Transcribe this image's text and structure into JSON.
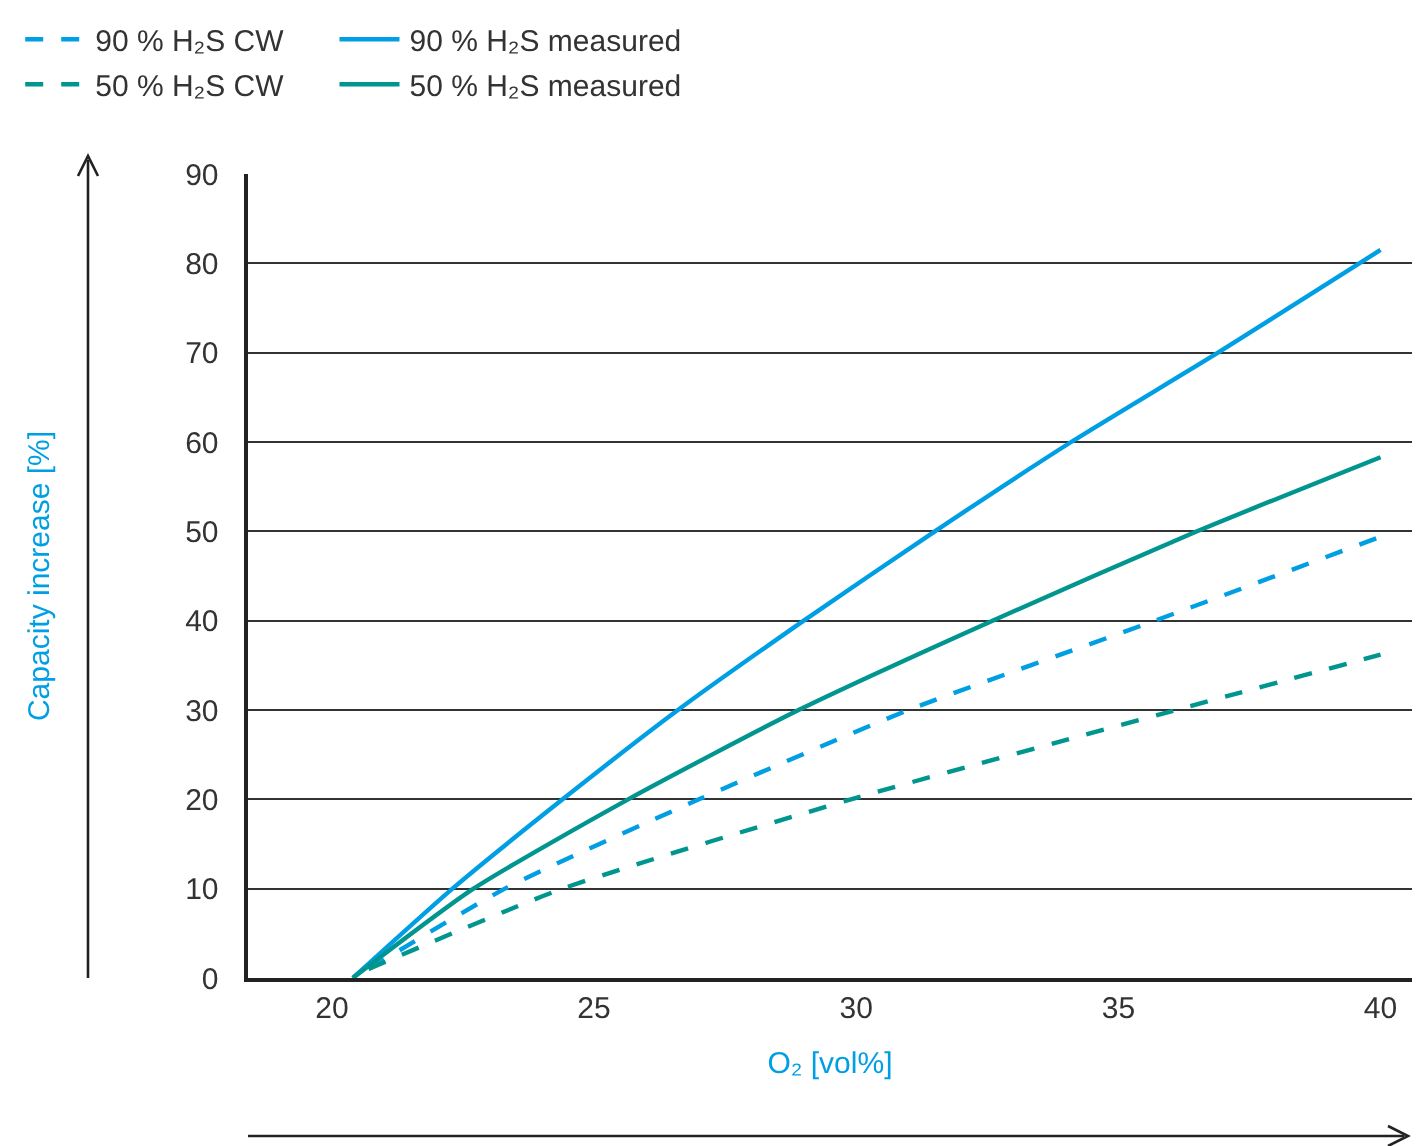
{
  "chart_data": {
    "type": "line",
    "xlabel": "O₂ [vol%]",
    "ylabel": "Capacity increase [%]",
    "xlim": [
      18.4,
      40.6
    ],
    "xticks": [
      20,
      25,
      30,
      35,
      40
    ],
    "ylim": [
      0,
      90
    ],
    "yticks": [
      0,
      10,
      20,
      30,
      40,
      50,
      60,
      70,
      80,
      90
    ],
    "grid": "y",
    "legend": "top left",
    "marker": "none",
    "series": [
      {
        "name": "90 % H₂S CW",
        "color": "#009fe3",
        "line_style": "dashed",
        "x": [
          20.7,
          23.3,
          27.0,
          31.0,
          35.7,
          40
        ],
        "values": [
          1,
          10,
          20,
          30,
          40,
          49.4
        ]
      },
      {
        "name": "90 % H₂S measured",
        "color": "#009fe3",
        "line_style": "solid",
        "x": [
          20.4,
          22.3,
          24.4,
          26.6,
          29.0,
          31.5,
          34.1,
          36.9,
          40
        ],
        "values": [
          0,
          10,
          20,
          30,
          40,
          50,
          60,
          70,
          81.5
        ]
      },
      {
        "name": "50 % H₂S CW",
        "color": "#00958f",
        "line_style": "dashed",
        "x": [
          20.7,
          24.4,
          29.9,
          36.1,
          40
        ],
        "values": [
          1,
          10,
          20,
          30,
          36.2
        ]
      },
      {
        "name": "50 % H₂S measured",
        "color": "#00958f",
        "line_style": "solid",
        "x": [
          20.4,
          22.7,
          25.65,
          28.9,
          32.6,
          36.5,
          40
        ],
        "values": [
          0,
          10,
          20,
          30,
          40,
          50,
          58.3
        ]
      }
    ]
  }
}
